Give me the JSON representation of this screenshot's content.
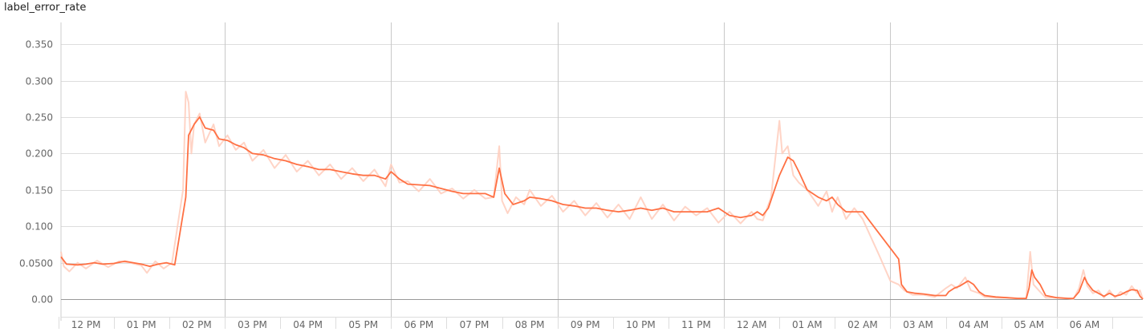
{
  "chart_data": {
    "type": "line",
    "title": "label_error_rate",
    "xlabel": "",
    "ylabel": "",
    "x_unit": "hours since 12 PM",
    "xlim": [
      -0.45,
      19.05
    ],
    "ylim": [
      0.0,
      0.38
    ],
    "grid": true,
    "legend": "none",
    "x_ticks": [
      "12 PM",
      "01 PM",
      "02 PM",
      "03 PM",
      "04 PM",
      "05 PM",
      "06 PM",
      "07 PM",
      "08 PM",
      "09 PM",
      "10 PM",
      "11 PM",
      "12 AM",
      "01 AM",
      "02 AM",
      "03 AM",
      "04 AM",
      "05 AM",
      "06 AM"
    ],
    "y_ticks": [
      "0.00",
      "0.0500",
      "0.100",
      "0.150",
      "0.200",
      "0.250",
      "0.300",
      "0.350"
    ],
    "colors": {
      "smoothed": "#ff7043",
      "raw": "#ffccbc",
      "grid": "#dddddd",
      "major_grid": "#c8c8c8",
      "zero_line": "#999999"
    },
    "series": [
      {
        "values": [
          [
            -0.45,
            0.058
          ],
          [
            -0.35,
            0.048
          ],
          [
            -0.15,
            0.047
          ],
          [
            0.0,
            0.048
          ],
          [
            0.15,
            0.05
          ],
          [
            0.3,
            0.048
          ],
          [
            0.5,
            0.049
          ],
          [
            0.7,
            0.052
          ],
          [
            0.85,
            0.05
          ],
          [
            1.0,
            0.048
          ],
          [
            1.15,
            0.045
          ],
          [
            1.3,
            0.048
          ],
          [
            1.45,
            0.05
          ],
          [
            1.6,
            0.047
          ],
          [
            1.8,
            0.14
          ],
          [
            1.85,
            0.225
          ],
          [
            1.95,
            0.24
          ],
          [
            2.05,
            0.25
          ],
          [
            2.15,
            0.235
          ],
          [
            2.3,
            0.232
          ],
          [
            2.4,
            0.22
          ],
          [
            2.55,
            0.218
          ],
          [
            2.7,
            0.212
          ],
          [
            2.85,
            0.208
          ],
          [
            3.0,
            0.2
          ],
          [
            3.2,
            0.198
          ],
          [
            3.4,
            0.193
          ],
          [
            3.6,
            0.19
          ],
          [
            3.8,
            0.185
          ],
          [
            4.0,
            0.182
          ],
          [
            4.2,
            0.178
          ],
          [
            4.4,
            0.178
          ],
          [
            4.6,
            0.175
          ],
          [
            4.8,
            0.172
          ],
          [
            5.0,
            0.17
          ],
          [
            5.2,
            0.17
          ],
          [
            5.4,
            0.165
          ],
          [
            5.5,
            0.175
          ],
          [
            5.65,
            0.165
          ],
          [
            5.8,
            0.158
          ],
          [
            6.0,
            0.157
          ],
          [
            6.2,
            0.156
          ],
          [
            6.4,
            0.152
          ],
          [
            6.6,
            0.148
          ],
          [
            6.8,
            0.145
          ],
          [
            7.0,
            0.145
          ],
          [
            7.2,
            0.145
          ],
          [
            7.35,
            0.14
          ],
          [
            7.45,
            0.18
          ],
          [
            7.55,
            0.145
          ],
          [
            7.7,
            0.13
          ],
          [
            7.9,
            0.135
          ],
          [
            8.0,
            0.14
          ],
          [
            8.2,
            0.138
          ],
          [
            8.4,
            0.135
          ],
          [
            8.6,
            0.13
          ],
          [
            8.8,
            0.128
          ],
          [
            9.0,
            0.125
          ],
          [
            9.2,
            0.125
          ],
          [
            9.4,
            0.122
          ],
          [
            9.6,
            0.12
          ],
          [
            9.8,
            0.122
          ],
          [
            10.0,
            0.125
          ],
          [
            10.2,
            0.122
          ],
          [
            10.4,
            0.125
          ],
          [
            10.6,
            0.12
          ],
          [
            10.8,
            0.12
          ],
          [
            11.0,
            0.12
          ],
          [
            11.2,
            0.12
          ],
          [
            11.4,
            0.125
          ],
          [
            11.6,
            0.115
          ],
          [
            11.8,
            0.112
          ],
          [
            12.0,
            0.115
          ],
          [
            12.1,
            0.12
          ],
          [
            12.2,
            0.115
          ],
          [
            12.3,
            0.125
          ],
          [
            12.5,
            0.17
          ],
          [
            12.65,
            0.195
          ],
          [
            12.75,
            0.19
          ],
          [
            12.85,
            0.175
          ],
          [
            13.0,
            0.15
          ],
          [
            13.2,
            0.14
          ],
          [
            13.35,
            0.135
          ],
          [
            13.45,
            0.14
          ],
          [
            13.55,
            0.13
          ],
          [
            13.7,
            0.12
          ],
          [
            13.85,
            0.12
          ],
          [
            14.0,
            0.12
          ],
          [
            14.3,
            0.09
          ],
          [
            14.65,
            0.055
          ],
          [
            14.7,
            0.02
          ],
          [
            14.8,
            0.01
          ],
          [
            14.95,
            0.008
          ],
          [
            15.1,
            0.007
          ],
          [
            15.3,
            0.005
          ],
          [
            15.5,
            0.005
          ],
          [
            15.55,
            0.01
          ],
          [
            15.65,
            0.015
          ],
          [
            15.75,
            0.018
          ],
          [
            15.9,
            0.025
          ],
          [
            16.0,
            0.02
          ],
          [
            16.1,
            0.01
          ],
          [
            16.2,
            0.005
          ],
          [
            16.4,
            0.003
          ],
          [
            16.6,
            0.002
          ],
          [
            16.8,
            0.001
          ],
          [
            16.95,
            0.001
          ],
          [
            17.0,
            0.015
          ],
          [
            17.05,
            0.04
          ],
          [
            17.1,
            0.03
          ],
          [
            17.2,
            0.02
          ],
          [
            17.3,
            0.005
          ],
          [
            17.5,
            0.002
          ],
          [
            17.7,
            0.001
          ],
          [
            17.8,
            0.001
          ],
          [
            17.9,
            0.01
          ],
          [
            18.0,
            0.03
          ],
          [
            18.05,
            0.022
          ],
          [
            18.15,
            0.012
          ],
          [
            18.25,
            0.008
          ],
          [
            18.35,
            0.004
          ],
          [
            18.45,
            0.008
          ],
          [
            18.55,
            0.004
          ],
          [
            18.65,
            0.006
          ],
          [
            18.75,
            0.01
          ],
          [
            18.85,
            0.013
          ],
          [
            18.95,
            0.012
          ],
          [
            19.0,
            0.004
          ],
          [
            19.05,
            0.0
          ]
        ]
      },
      {
        "values": [
          [
            -0.45,
            0.065
          ],
          [
            -0.4,
            0.045
          ],
          [
            -0.3,
            0.038
          ],
          [
            -0.15,
            0.05
          ],
          [
            0.0,
            0.042
          ],
          [
            0.2,
            0.053
          ],
          [
            0.4,
            0.044
          ],
          [
            0.6,
            0.052
          ],
          [
            0.8,
            0.05
          ],
          [
            1.0,
            0.046
          ],
          [
            1.1,
            0.036
          ],
          [
            1.25,
            0.052
          ],
          [
            1.4,
            0.042
          ],
          [
            1.55,
            0.05
          ],
          [
            1.75,
            0.15
          ],
          [
            1.8,
            0.285
          ],
          [
            1.85,
            0.27
          ],
          [
            1.9,
            0.2
          ],
          [
            1.95,
            0.24
          ],
          [
            2.05,
            0.255
          ],
          [
            2.15,
            0.215
          ],
          [
            2.3,
            0.24
          ],
          [
            2.4,
            0.21
          ],
          [
            2.55,
            0.225
          ],
          [
            2.7,
            0.205
          ],
          [
            2.85,
            0.215
          ],
          [
            3.0,
            0.19
          ],
          [
            3.2,
            0.205
          ],
          [
            3.4,
            0.18
          ],
          [
            3.6,
            0.198
          ],
          [
            3.8,
            0.175
          ],
          [
            4.0,
            0.19
          ],
          [
            4.2,
            0.17
          ],
          [
            4.4,
            0.185
          ],
          [
            4.6,
            0.165
          ],
          [
            4.8,
            0.18
          ],
          [
            5.0,
            0.162
          ],
          [
            5.2,
            0.178
          ],
          [
            5.4,
            0.155
          ],
          [
            5.5,
            0.185
          ],
          [
            5.65,
            0.16
          ],
          [
            5.8,
            0.162
          ],
          [
            6.0,
            0.148
          ],
          [
            6.2,
            0.165
          ],
          [
            6.4,
            0.145
          ],
          [
            6.6,
            0.152
          ],
          [
            6.8,
            0.138
          ],
          [
            7.0,
            0.15
          ],
          [
            7.2,
            0.138
          ],
          [
            7.35,
            0.14
          ],
          [
            7.45,
            0.21
          ],
          [
            7.5,
            0.135
          ],
          [
            7.6,
            0.118
          ],
          [
            7.75,
            0.14
          ],
          [
            7.9,
            0.13
          ],
          [
            8.0,
            0.15
          ],
          [
            8.2,
            0.128
          ],
          [
            8.4,
            0.142
          ],
          [
            8.6,
            0.12
          ],
          [
            8.8,
            0.135
          ],
          [
            9.0,
            0.115
          ],
          [
            9.2,
            0.132
          ],
          [
            9.4,
            0.112
          ],
          [
            9.6,
            0.13
          ],
          [
            9.8,
            0.11
          ],
          [
            10.0,
            0.14
          ],
          [
            10.2,
            0.11
          ],
          [
            10.4,
            0.13
          ],
          [
            10.6,
            0.108
          ],
          [
            10.8,
            0.127
          ],
          [
            11.0,
            0.115
          ],
          [
            11.2,
            0.125
          ],
          [
            11.4,
            0.105
          ],
          [
            11.6,
            0.12
          ],
          [
            11.8,
            0.104
          ],
          [
            12.0,
            0.12
          ],
          [
            12.1,
            0.11
          ],
          [
            12.2,
            0.108
          ],
          [
            12.35,
            0.14
          ],
          [
            12.5,
            0.245
          ],
          [
            12.55,
            0.2
          ],
          [
            12.65,
            0.21
          ],
          [
            12.75,
            0.17
          ],
          [
            12.85,
            0.16
          ],
          [
            13.0,
            0.15
          ],
          [
            13.2,
            0.128
          ],
          [
            13.35,
            0.148
          ],
          [
            13.45,
            0.12
          ],
          [
            13.55,
            0.14
          ],
          [
            13.7,
            0.11
          ],
          [
            13.85,
            0.125
          ],
          [
            14.0,
            0.11
          ],
          [
            14.3,
            0.06
          ],
          [
            14.5,
            0.025
          ],
          [
            14.65,
            0.02
          ],
          [
            14.75,
            0.012
          ],
          [
            14.9,
            0.006
          ],
          [
            15.1,
            0.006
          ],
          [
            15.3,
            0.003
          ],
          [
            15.5,
            0.015
          ],
          [
            15.6,
            0.02
          ],
          [
            15.7,
            0.015
          ],
          [
            15.85,
            0.03
          ],
          [
            15.95,
            0.012
          ],
          [
            16.1,
            0.008
          ],
          [
            16.2,
            0.003
          ],
          [
            16.4,
            0.002
          ],
          [
            16.6,
            0.002
          ],
          [
            16.8,
            0.001
          ],
          [
            16.95,
            0.001
          ],
          [
            17.02,
            0.065
          ],
          [
            17.08,
            0.02
          ],
          [
            17.2,
            0.01
          ],
          [
            17.3,
            0.002
          ],
          [
            17.5,
            0.002
          ],
          [
            17.7,
            0.001
          ],
          [
            17.8,
            0.0
          ],
          [
            17.9,
            0.015
          ],
          [
            17.98,
            0.04
          ],
          [
            18.05,
            0.018
          ],
          [
            18.15,
            0.008
          ],
          [
            18.25,
            0.012
          ],
          [
            18.35,
            0.002
          ],
          [
            18.45,
            0.012
          ],
          [
            18.55,
            0.002
          ],
          [
            18.65,
            0.01
          ],
          [
            18.75,
            0.006
          ],
          [
            18.85,
            0.018
          ],
          [
            18.95,
            0.008
          ],
          [
            19.0,
            0.012
          ],
          [
            19.05,
            0.0
          ]
        ]
      }
    ]
  }
}
